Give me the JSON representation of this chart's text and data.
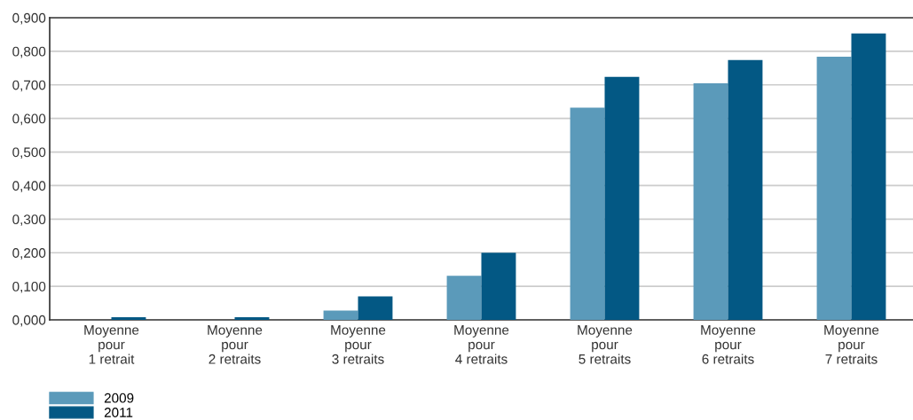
{
  "chart_data": {
    "type": "bar",
    "categories": [
      "Moyenne\npour\n1 retrait",
      "Moyenne\npour\n2 retraits",
      "Moyenne\npour\n3 retraits",
      "Moyenne\npour\n4 retraits",
      "Moyenne\npour\n5 retraits",
      "Moyenne\npour\n6 retraits",
      "Moyenne\npour\n7 retraits"
    ],
    "series": [
      {
        "name": "2009",
        "color": "#5b9aba",
        "values": [
          0,
          0,
          0.028,
          0.131,
          0.632,
          0.705,
          0.784
        ]
      },
      {
        "name": "2011",
        "color": "#035884",
        "values": [
          0.008,
          0.008,
          0.07,
          0.2,
          0.724,
          0.774,
          0.853
        ]
      }
    ],
    "ylim": [
      0,
      0.9
    ],
    "yticks": [
      {
        "value": 0,
        "label": "0,000"
      },
      {
        "value": 0.1,
        "label": "0,100"
      },
      {
        "value": 0.2,
        "label": "0,200"
      },
      {
        "value": 0.3,
        "label": "0,300"
      },
      {
        "value": 0.4,
        "label": "0,400"
      },
      {
        "value": 0.5,
        "label": "0,500"
      },
      {
        "value": 0.6,
        "label": "0,600"
      },
      {
        "value": 0.7,
        "label": "0,700"
      },
      {
        "value": 0.8,
        "label": "0,800"
      },
      {
        "value": 0.9,
        "label": "0,900"
      }
    ],
    "grid": "y",
    "legend": "bottom left"
  }
}
